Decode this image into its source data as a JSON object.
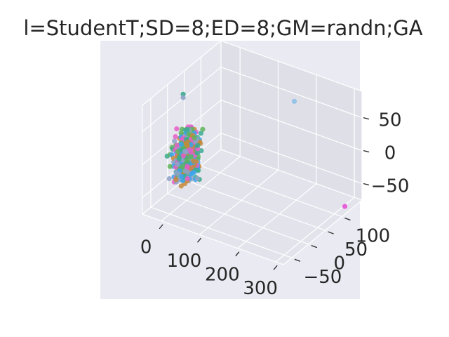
{
  "chart_data": {
    "type": "scatter",
    "projection": "3d",
    "title": "l=StudentT;SD=8;ED=8;GM=randn;GA",
    "xlabel": "",
    "ylabel": "",
    "zlabel": "",
    "xlim": [
      -50,
      320
    ],
    "ylim": [
      -75,
      160
    ],
    "zlim": [
      -75,
      90
    ],
    "x_ticks": [
      0,
      100,
      200,
      300
    ],
    "x_tick_labels": [
      "0",
      "100",
      "200",
      "300"
    ],
    "y_ticks": [
      -50,
      0,
      50,
      100
    ],
    "y_tick_labels": [
      "−50",
      "0",
      "50",
      "100"
    ],
    "z_ticks": [
      -50,
      0,
      50
    ],
    "z_tick_labels": [
      "−50",
      "0",
      "50"
    ],
    "grid": true,
    "background": "#eaeaf2",
    "cluster": {
      "x_range": [
        -20,
        25
      ],
      "y_range": [
        -40,
        30
      ],
      "z_range": [
        -40,
        30
      ],
      "approx_points": 450
    },
    "series_colors": [
      "#3ba3ec",
      "#3aab8f",
      "#e65ec7",
      "#c58a3a",
      "#8fa3c7",
      "#62b35a"
    ],
    "outliers": [
      {
        "x": 0,
        "y": -10,
        "z": 90,
        "color": "#3aab8f"
      },
      {
        "x": 0,
        "y": -10,
        "z": 85,
        "color": "#8fa3c7"
      },
      {
        "x": 160,
        "y": 140,
        "z": 50,
        "color": "#8ec1e6"
      },
      {
        "x": 310,
        "y": 120,
        "z": -70,
        "color": "#e650d6"
      }
    ]
  }
}
